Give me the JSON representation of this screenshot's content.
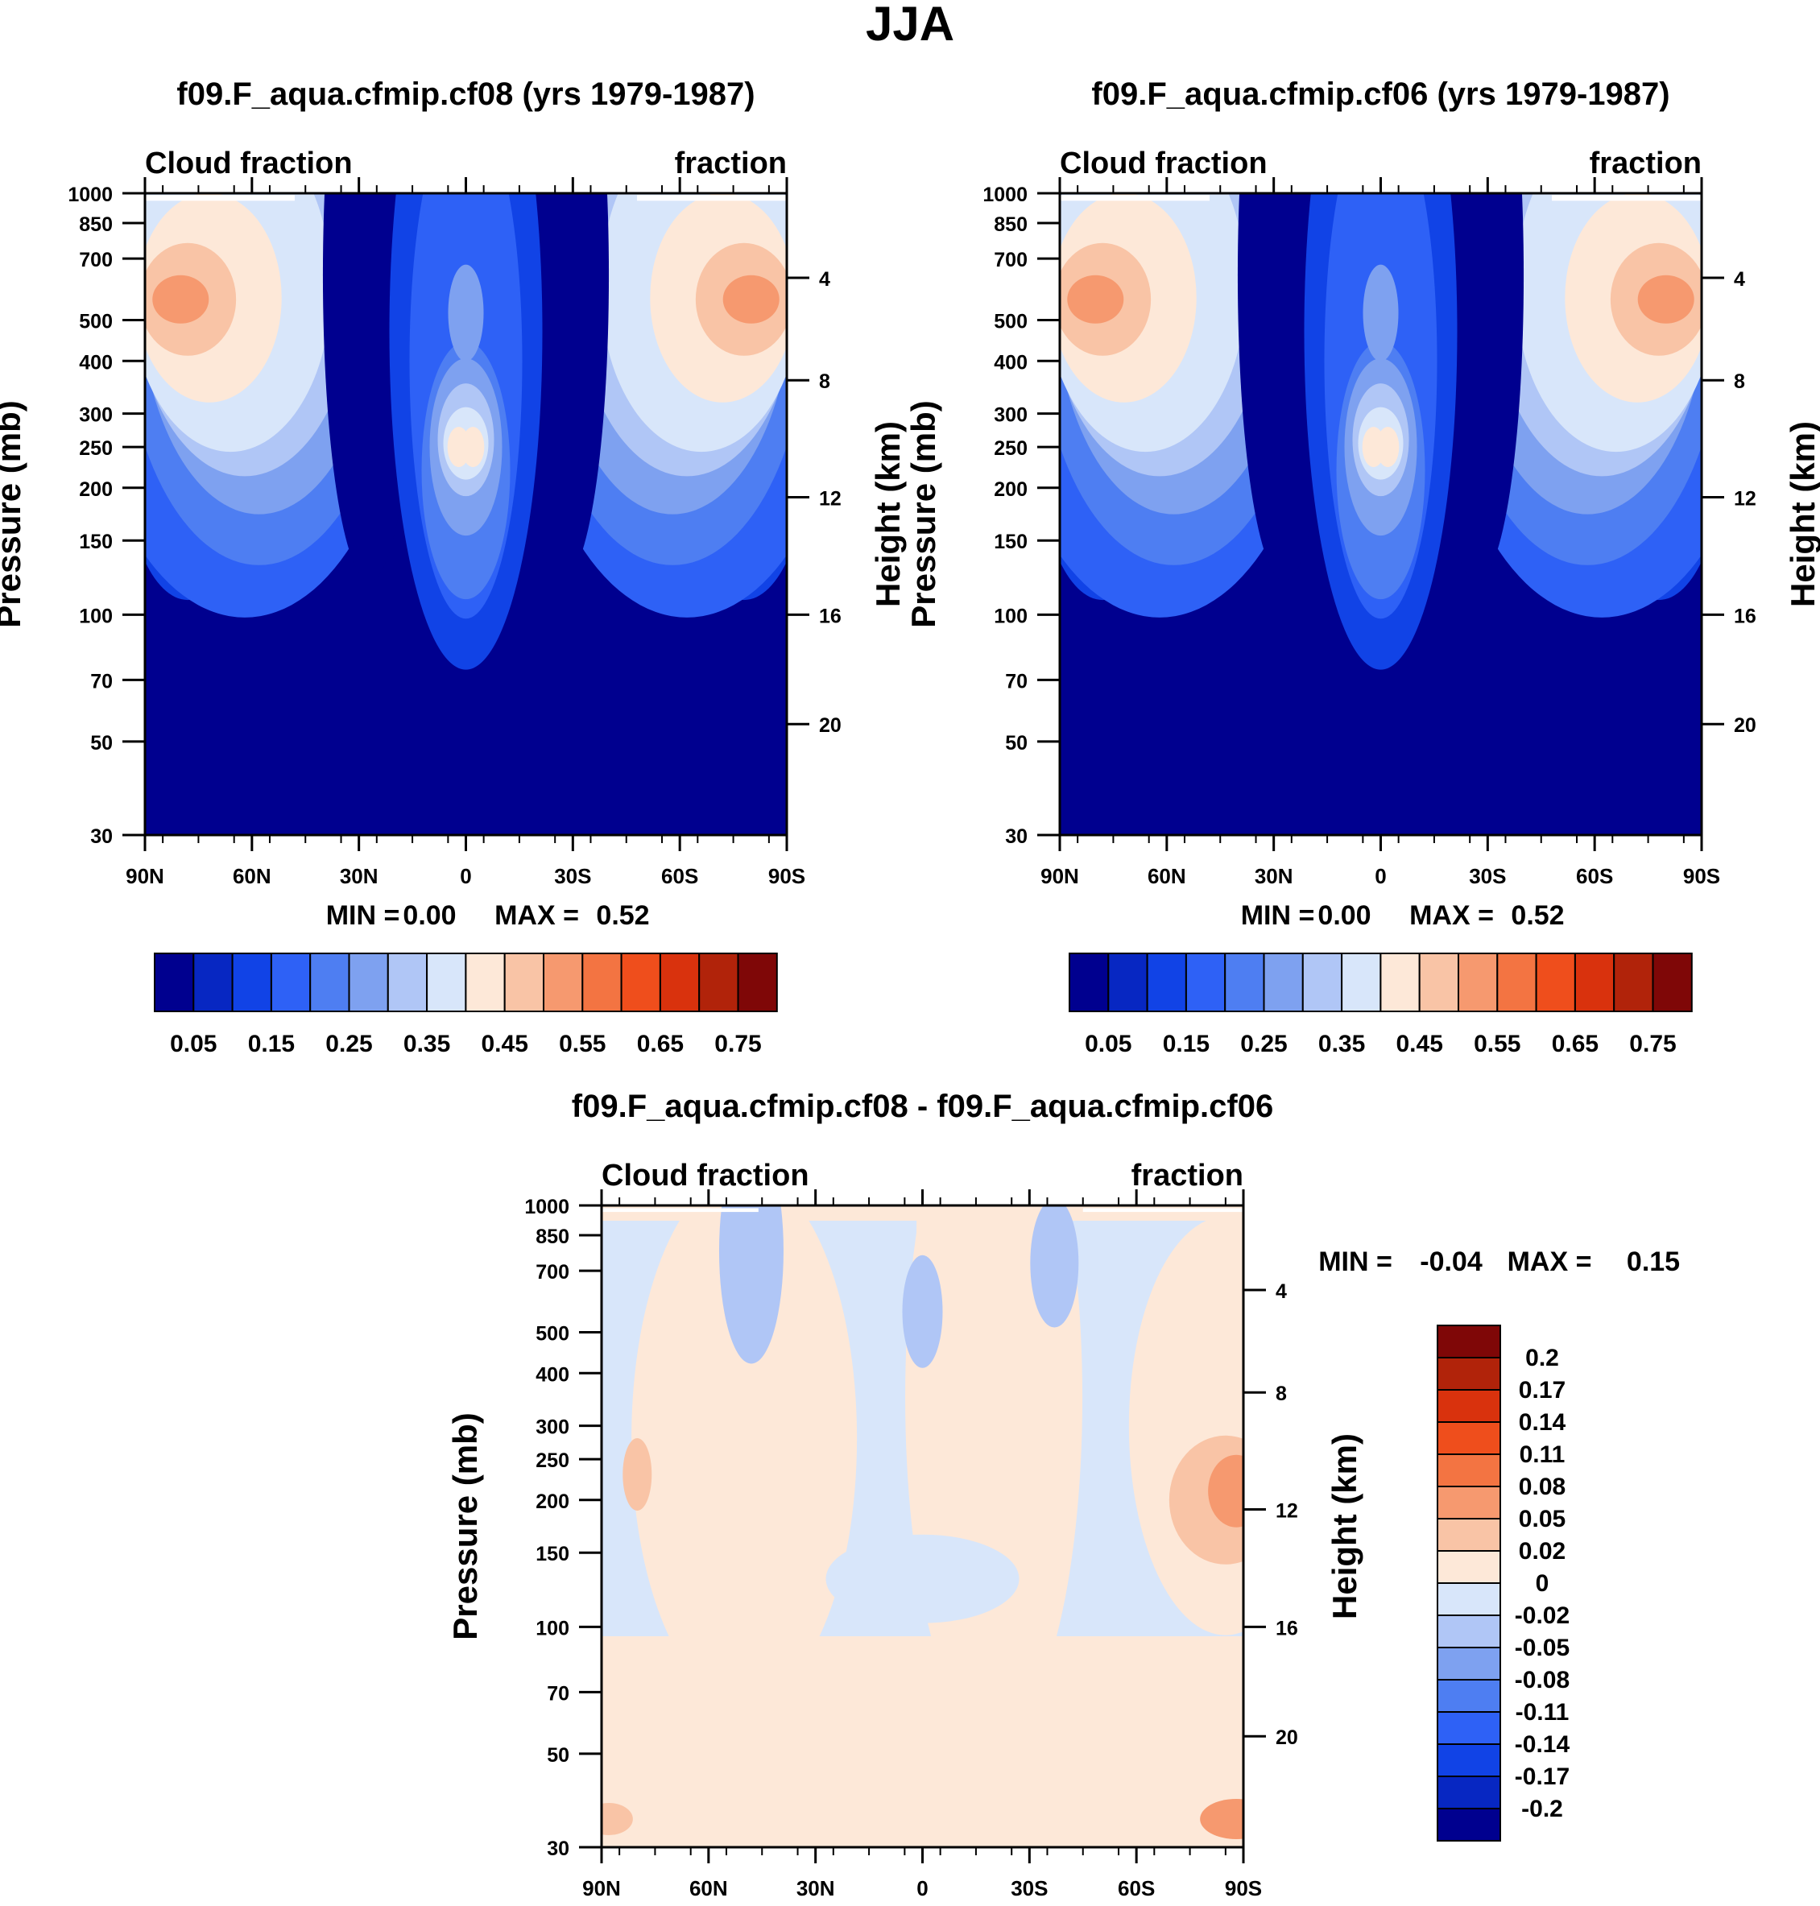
{
  "colors": {
    "cf_palette": [
      "#00008f",
      "#0727c2",
      "#1143e6",
      "#2e61f6",
      "#4e7ef2",
      "#7ea1f0",
      "#b0c6f6",
      "#d8e6fa",
      "#fde8d8",
      "#f9c4a6",
      "#f6996f",
      "#f37442",
      "#ef4e1c",
      "#d9320d",
      "#b1230a",
      "#7f0707"
    ],
    "diff_palette": [
      "#00008f",
      "#0727c2",
      "#1143e6",
      "#2e61f6",
      "#4e7ef2",
      "#7ea1f0",
      "#b0c6f6",
      "#d8e6fa",
      "#fde8d8",
      "#f9c4a6",
      "#f6996f",
      "#f37442",
      "#ef4e1c",
      "#d9320d",
      "#b1230a",
      "#7f0707"
    ]
  },
  "page": {
    "title": "JJA"
  },
  "chart_data": [
    {
      "id": "panel-cf08",
      "type": "contour",
      "title": "f09.F_aqua.cfmip.cf08 (yrs 1979-1987)",
      "left_label": "Cloud fraction",
      "right_label": "fraction",
      "ylabel": "Pressure (mb)",
      "ylabel_right": "Height (km)",
      "x_ticks": [
        "90N",
        "60N",
        "30N",
        "0",
        "30S",
        "60S",
        "90S"
      ],
      "x_range": [
        90,
        -90
      ],
      "y_ticks": [
        "30",
        "50",
        "70",
        "100",
        "150",
        "200",
        "250",
        "300",
        "400",
        "500",
        "700",
        "850",
        "1000"
      ],
      "y_range": [
        30,
        1000
      ],
      "height_ticks": [
        "20",
        "16",
        "12",
        "8",
        "4"
      ],
      "stats": {
        "min_label": "MIN =",
        "min": "0.00",
        "max_label": "MAX =",
        "max": "0.52"
      },
      "colorbar": {
        "orientation": "horizontal",
        "labels": [
          "0.05",
          "0.15",
          "0.25",
          "0.35",
          "0.45",
          "0.55",
          "0.65",
          "0.75"
        ]
      }
    },
    {
      "id": "panel-cf06",
      "type": "contour",
      "title": "f09.F_aqua.cfmip.cf06 (yrs 1979-1987)",
      "left_label": "Cloud fraction",
      "right_label": "fraction",
      "ylabel": "Pressure (mb)",
      "ylabel_right": "Height (km)",
      "x_ticks": [
        "90N",
        "60N",
        "30N",
        "0",
        "30S",
        "60S",
        "90S"
      ],
      "x_range": [
        90,
        -90
      ],
      "y_ticks": [
        "30",
        "50",
        "70",
        "100",
        "150",
        "200",
        "250",
        "300",
        "400",
        "500",
        "700",
        "850",
        "1000"
      ],
      "y_range": [
        30,
        1000
      ],
      "height_ticks": [
        "20",
        "16",
        "12",
        "8",
        "4"
      ],
      "stats": {
        "min_label": "MIN =",
        "min": "0.00",
        "max_label": "MAX =",
        "max": "0.52"
      },
      "colorbar": {
        "orientation": "horizontal",
        "labels": [
          "0.05",
          "0.15",
          "0.25",
          "0.35",
          "0.45",
          "0.55",
          "0.65",
          "0.75"
        ]
      }
    },
    {
      "id": "panel-diff",
      "type": "contour",
      "title": "f09.F_aqua.cfmip.cf08 - f09.F_aqua.cfmip.cf06",
      "left_label": "Cloud fraction",
      "right_label": "fraction",
      "ylabel": "Pressure (mb)",
      "ylabel_right": "Height (km)",
      "x_ticks": [
        "90N",
        "60N",
        "30N",
        "0",
        "30S",
        "60S",
        "90S"
      ],
      "x_range": [
        90,
        -90
      ],
      "y_ticks": [
        "30",
        "50",
        "70",
        "100",
        "150",
        "200",
        "250",
        "300",
        "400",
        "500",
        "700",
        "850",
        "1000"
      ],
      "y_range": [
        30,
        1000
      ],
      "height_ticks": [
        "20",
        "16",
        "12",
        "8",
        "4"
      ],
      "stats": {
        "min_label": "MIN =",
        "min": "-0.04",
        "max_label": "MAX =",
        "max": "0.15"
      },
      "colorbar": {
        "orientation": "vertical",
        "labels": [
          "0.2",
          "0.17",
          "0.14",
          "0.11",
          "0.08",
          "0.05",
          "0.02",
          "0",
          "-0.02",
          "-0.05",
          "-0.08",
          "-0.11",
          "-0.14",
          "-0.17",
          "-0.2"
        ]
      }
    }
  ]
}
